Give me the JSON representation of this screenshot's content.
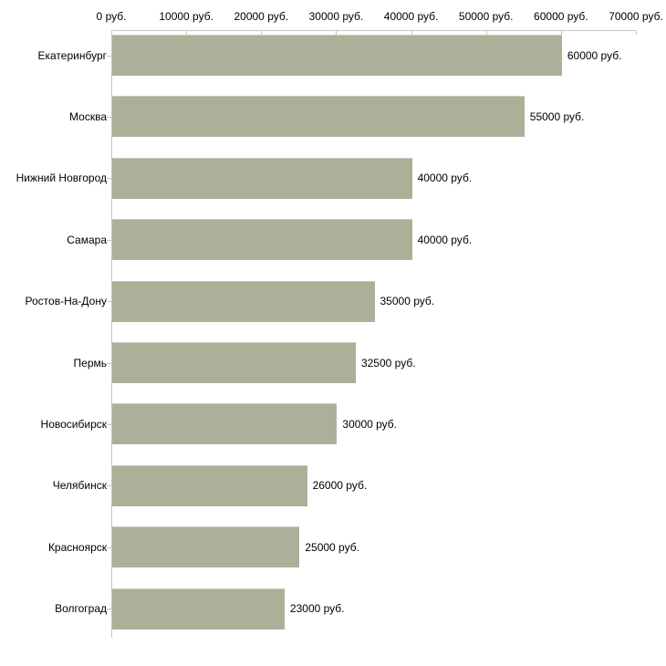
{
  "chart_data": {
    "type": "bar",
    "orientation": "horizontal",
    "title": "",
    "xlabel": "",
    "ylabel": "",
    "xlim": [
      0,
      70000
    ],
    "grid": false,
    "legend": false,
    "x_tick_values": [
      0,
      10000,
      20000,
      30000,
      40000,
      50000,
      60000,
      70000
    ],
    "x_tick_labels": [
      "0 руб.",
      "10000 руб.",
      "20000 руб.",
      "30000 руб.",
      "40000 руб.",
      "50000 руб.",
      "60000 руб.",
      "70000 руб."
    ],
    "categories": [
      "Екатеринбург",
      "Москва",
      "Нижний Новгород",
      "Самара",
      "Ростов-На-Дону",
      "Пермь",
      "Новосибирск",
      "Челябинск",
      "Красноярск",
      "Волгоград"
    ],
    "values": [
      60000,
      55000,
      40000,
      40000,
      35000,
      32500,
      30000,
      26000,
      25000,
      23000
    ],
    "value_labels": [
      "60000 руб.",
      "55000 руб.",
      "40000 руб.",
      "40000 руб.",
      "35000 руб.",
      "32500 руб.",
      "30000 руб.",
      "26000 руб.",
      "25000 руб.",
      "23000 руб."
    ],
    "colors": {
      "bar_fill": "#abb199",
      "bar_top_edge": "#c8cdbc",
      "axis_line": "#c6c6c6",
      "x_tick_mark": "#c9caa2",
      "y_tick_mark": "#c5c9b0",
      "text": "#000000",
      "background": "#ffffff"
    }
  }
}
